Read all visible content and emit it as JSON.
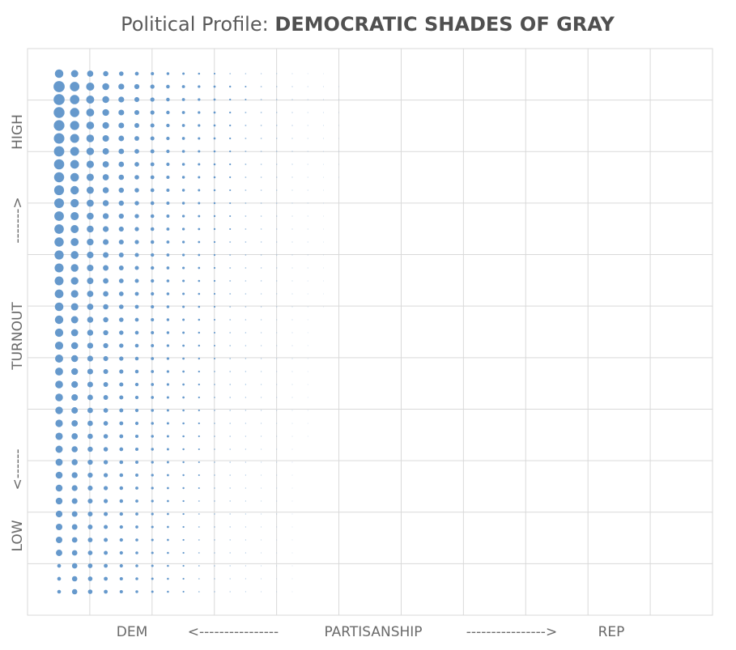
{
  "chart_data": {
    "type": "scatter",
    "title": "Political Profile: ",
    "title_emphasis": "DEMOCRATIC SHADES OF GRAY",
    "x_axis": {
      "left_label": "DEM",
      "center_label": "PARTISANSHIP",
      "right_label": "REP",
      "left_arrow": "<----------------",
      "right_arrow": "---------------->"
    },
    "y_axis": {
      "low_label": "LOW",
      "center_label": "TURNOUT",
      "high_label": "HIGH",
      "low_arrow": "<------",
      "high_arrow": "------->"
    },
    "grid": true,
    "grid_columns": 11,
    "grid_rows": 11,
    "dot_columns": 40,
    "dot_rows": 41,
    "marker_color": "#6699cc",
    "note": "bubble matrix: x = partisanship bin (0=most Dem), y = turnout bin (0=lowest); bubble area encodes count, strongest at high turnout / strong Dem"
  }
}
